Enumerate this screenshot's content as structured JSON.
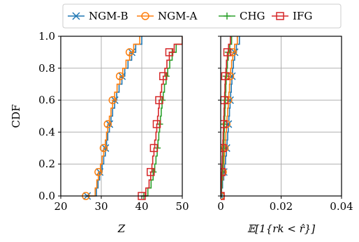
{
  "chart_data": [
    {
      "type": "step",
      "xlabel": "Z",
      "ylabel": "CDF",
      "xlim": [
        20,
        50
      ],
      "ylim": [
        0.0,
        1.0
      ],
      "xticks": [
        20,
        30,
        40,
        50
      ],
      "xtick_labels": [
        "20",
        "30",
        "40",
        "50"
      ],
      "yticks": [
        0.0,
        0.2,
        0.4,
        0.6,
        0.8,
        1.0
      ],
      "ytick_labels": [
        "0.0",
        "0.2",
        "0.4",
        "0.6",
        "0.8",
        "1.0"
      ],
      "grid": true,
      "series": [
        {
          "name": "NGM-B",
          "color": "#1f77b4",
          "marker": "x",
          "x": [
            26.5,
            28.8,
            29.2,
            29.6,
            30.2,
            30.6,
            31.0,
            31.3,
            31.6,
            32.0,
            32.4,
            32.8,
            33.3,
            33.8,
            34.4,
            35.1,
            35.8,
            36.6,
            37.5,
            38.5,
            40.0
          ],
          "y": [
            0.0,
            0.05,
            0.1,
            0.15,
            0.2,
            0.25,
            0.3,
            0.35,
            0.4,
            0.45,
            0.5,
            0.55,
            0.6,
            0.65,
            0.7,
            0.75,
            0.8,
            0.85,
            0.9,
            0.95,
            1.0
          ]
        },
        {
          "name": "NGM-A",
          "color": "#ff7f0e",
          "marker": "o",
          "x": [
            26.2,
            28.5,
            28.9,
            29.3,
            29.8,
            30.2,
            30.6,
            31.0,
            31.3,
            31.6,
            32.0,
            32.4,
            32.8,
            33.3,
            33.9,
            34.6,
            35.3,
            36.1,
            37.0,
            38.0,
            39.5
          ],
          "y": [
            0.0,
            0.05,
            0.1,
            0.15,
            0.2,
            0.25,
            0.3,
            0.35,
            0.4,
            0.45,
            0.5,
            0.55,
            0.6,
            0.65,
            0.7,
            0.75,
            0.8,
            0.85,
            0.9,
            0.95,
            1.0
          ]
        },
        {
          "name": "CHG",
          "color": "#2ca02c",
          "marker": "+",
          "x": [
            40.5,
            41.5,
            42.3,
            42.8,
            43.2,
            43.5,
            43.8,
            44.0,
            44.2,
            44.4,
            44.6,
            44.8,
            45.0,
            45.3,
            45.6,
            46.0,
            46.4,
            46.9,
            47.5,
            48.5,
            50.0
          ],
          "y": [
            0.0,
            0.05,
            0.1,
            0.15,
            0.2,
            0.25,
            0.3,
            0.35,
            0.4,
            0.45,
            0.5,
            0.55,
            0.6,
            0.65,
            0.7,
            0.75,
            0.8,
            0.85,
            0.9,
            0.95,
            1.0
          ]
        },
        {
          "name": "IFG",
          "color": "#d62728",
          "marker": "s",
          "x": [
            40.0,
            41.0,
            41.8,
            42.2,
            42.5,
            42.7,
            43.0,
            43.2,
            43.5,
            43.7,
            43.9,
            44.1,
            44.3,
            44.6,
            44.9,
            45.3,
            45.7,
            46.2,
            46.8,
            48.0,
            50.0
          ],
          "y": [
            0.0,
            0.05,
            0.1,
            0.15,
            0.2,
            0.25,
            0.3,
            0.35,
            0.4,
            0.45,
            0.5,
            0.55,
            0.6,
            0.65,
            0.7,
            0.75,
            0.8,
            0.85,
            0.9,
            0.95,
            1.0
          ]
        }
      ]
    },
    {
      "type": "step",
      "xlabel": "𝔼[1{rk < r̂}]",
      "ylabel": "",
      "xlim": [
        0.0,
        0.04
      ],
      "ylim": [
        0.0,
        1.0
      ],
      "xticks": [
        0.0,
        0.02,
        0.04
      ],
      "xtick_labels": [
        "0",
        "0.02",
        "0.04"
      ],
      "yticks": [
        0.0,
        0.2,
        0.4,
        0.6,
        0.8,
        1.0
      ],
      "grid": true,
      "series": [
        {
          "name": "NGM-B",
          "color": "#1f77b4",
          "marker": "x",
          "x": [
            0.0,
            0.0003,
            0.0006,
            0.001,
            0.0013,
            0.0016,
            0.0019,
            0.0021,
            0.0023,
            0.0025,
            0.0027,
            0.0029,
            0.0031,
            0.0033,
            0.0035,
            0.0037,
            0.0039,
            0.0042,
            0.0046,
            0.0052,
            0.0062
          ],
          "y": [
            0.0,
            0.05,
            0.1,
            0.15,
            0.2,
            0.25,
            0.3,
            0.35,
            0.4,
            0.45,
            0.5,
            0.55,
            0.6,
            0.65,
            0.7,
            0.75,
            0.8,
            0.85,
            0.9,
            0.95,
            1.0
          ]
        },
        {
          "name": "NGM-A",
          "color": "#ff7f0e",
          "marker": "o",
          "x": [
            0.0,
            0.0002,
            0.0004,
            0.0007,
            0.0009,
            0.0011,
            0.0013,
            0.0015,
            0.0017,
            0.0019,
            0.0021,
            0.0023,
            0.0025,
            0.0027,
            0.0029,
            0.0031,
            0.0033,
            0.0036,
            0.004,
            0.0046,
            0.0055
          ],
          "y": [
            0.0,
            0.05,
            0.1,
            0.15,
            0.2,
            0.25,
            0.3,
            0.35,
            0.4,
            0.45,
            0.5,
            0.55,
            0.6,
            0.65,
            0.7,
            0.75,
            0.8,
            0.85,
            0.9,
            0.95,
            1.0
          ]
        },
        {
          "name": "CHG",
          "color": "#2ca02c",
          "marker": "+",
          "x": [
            0.0,
            0.0002,
            0.0004,
            0.0005,
            0.0007,
            0.0008,
            0.0009,
            0.001,
            0.0011,
            0.0012,
            0.0013,
            0.0014,
            0.0015,
            0.0016,
            0.0017,
            0.0018,
            0.002,
            0.0022,
            0.0025,
            0.003,
            0.0036
          ],
          "y": [
            0.0,
            0.05,
            0.1,
            0.15,
            0.2,
            0.25,
            0.3,
            0.35,
            0.4,
            0.45,
            0.5,
            0.55,
            0.6,
            0.65,
            0.7,
            0.75,
            0.8,
            0.85,
            0.9,
            0.95,
            1.0
          ]
        },
        {
          "name": "IFG",
          "color": "#d62728",
          "marker": "s",
          "x": [
            0.0,
            0.0001,
            0.0002,
            0.0003,
            0.0004,
            0.0005,
            0.0006,
            0.0007,
            0.0008,
            0.0009,
            0.001,
            0.0011,
            0.0012,
            0.0013,
            0.0014,
            0.0015,
            0.0017,
            0.0019,
            0.0022,
            0.0026,
            0.0032
          ],
          "y": [
            0.0,
            0.05,
            0.1,
            0.15,
            0.2,
            0.25,
            0.3,
            0.35,
            0.4,
            0.45,
            0.5,
            0.55,
            0.6,
            0.65,
            0.7,
            0.75,
            0.8,
            0.85,
            0.9,
            0.95,
            1.0
          ]
        }
      ]
    }
  ],
  "legend": {
    "position": "top-center",
    "entries": [
      "NGM-B",
      "NGM-A",
      "CHG",
      "IFG"
    ]
  }
}
